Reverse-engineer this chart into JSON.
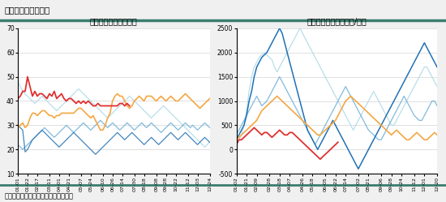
{
  "title": "图表：烧碱企业库存",
  "footer": "资料来源：卓创资讯、新湖期货研究所",
  "header_color": "#3a7d6e",
  "left_title": "烧碱企业库存（万吨）",
  "right_title": "山东电解单元利润（元/吨）",
  "left_ylim": [
    10,
    70
  ],
  "left_yticks": [
    10,
    20,
    30,
    40,
    50,
    60,
    70
  ],
  "right_ylim": [
    -500,
    2500
  ],
  "right_yticks": [
    -500,
    0,
    500,
    1000,
    1500,
    2000,
    2500
  ],
  "colors": {
    "2020": "#add8e6",
    "2021": "#6baed6",
    "2022": "#2171b5",
    "2023": "#f4a742",
    "2024": "#e03030"
  },
  "left_xticklabels": [
    "01-01",
    "01-22",
    "02-17",
    "03-11",
    "04-01",
    "04-21",
    "05-07",
    "05-24",
    "06-10",
    "06-26",
    "07-14",
    "07-30",
    "08-18",
    "09-08",
    "09-28",
    "10-22",
    "11-12",
    "12-03",
    "12-24"
  ],
  "right_xticklabels": [
    "01-02",
    "01-21",
    "02-09",
    "02-28",
    "03-18",
    "04-07",
    "04-26",
    "05-18",
    "06-05",
    "06-22",
    "07-14",
    "07-02",
    "08-21",
    "09-06",
    "09-28",
    "10-24",
    "11-12",
    "12-01",
    "12-20"
  ],
  "background": "#f0f0f0",
  "panel_bg": "#ffffff"
}
